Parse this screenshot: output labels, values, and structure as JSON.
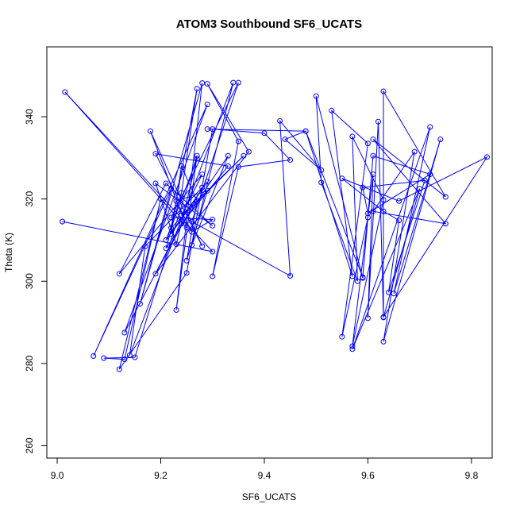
{
  "chart_data": {
    "type": "scatter",
    "title": "ATOM3 Southbound SF6_UCATS",
    "xlabel": "SF6_UCATS",
    "ylabel": "Theta (K)",
    "xlim": [
      8.98,
      9.84
    ],
    "ylim": [
      257,
      357
    ],
    "xticks": [
      9.0,
      9.2,
      9.4,
      9.6,
      9.8
    ],
    "yticks": [
      260,
      280,
      300,
      320,
      340
    ],
    "xtick_labels": [
      "9.0",
      "9.2",
      "9.4",
      "9.6",
      "9.8"
    ],
    "ytick_labels": [
      "260",
      "280",
      "300",
      "320",
      "340"
    ],
    "grid": false,
    "legend": "none",
    "marker": "open-circle",
    "line": "connected-in-order",
    "color": "#0000ff",
    "series": [
      {
        "points": [
          [
            9.01,
            314.5
          ],
          [
            9.3,
            307.2
          ],
          [
            9.015,
            346.0
          ],
          [
            9.25,
            313.0
          ],
          [
            9.18,
            336.5
          ],
          [
            9.28,
            308.5
          ],
          [
            9.19,
            331.0
          ],
          [
            9.33,
            328.0
          ],
          [
            9.24,
            314.0
          ],
          [
            9.13,
            287.5
          ],
          [
            9.29,
            343.0
          ],
          [
            9.07,
            281.8
          ],
          [
            9.22,
            322.5
          ],
          [
            9.16,
            294.5
          ],
          [
            9.28,
            348.2
          ],
          [
            9.23,
            293.0
          ],
          [
            9.27,
            330.5
          ],
          [
            9.15,
            281.5
          ],
          [
            9.09,
            281.3
          ],
          [
            9.13,
            281.0
          ],
          [
            9.2,
            320.0
          ],
          [
            9.12,
            278.6
          ],
          [
            9.25,
            302.0
          ],
          [
            9.3,
            337.0
          ],
          [
            9.4,
            336.0
          ],
          [
            9.45,
            329.5
          ],
          [
            9.35,
            327.8
          ],
          [
            9.3,
            301.2
          ],
          [
            9.35,
            334.0
          ],
          [
            9.29,
            348.0
          ],
          [
            9.37,
            331.5
          ],
          [
            9.19,
            301.8
          ],
          [
            9.28,
            322.8
          ],
          [
            9.17,
            308.5
          ],
          [
            9.14,
            282.0
          ],
          [
            9.34,
            348.3
          ],
          [
            9.26,
            308.8
          ],
          [
            9.33,
            330.5
          ],
          [
            9.21,
            308.0
          ],
          [
            9.24,
            321.5
          ],
          [
            9.27,
            346.8
          ],
          [
            9.22,
            313.0
          ],
          [
            9.36,
            330.5
          ],
          [
            9.24,
            316.0
          ],
          [
            9.28,
            326.0
          ],
          [
            9.12,
            301.8
          ],
          [
            9.21,
            323.8
          ],
          [
            9.3,
            313.5
          ],
          [
            9.19,
            323.8
          ],
          [
            9.23,
            309.0
          ],
          [
            9.27,
            329.8
          ],
          [
            9.21,
            310.0
          ],
          [
            9.29,
            324.2
          ],
          [
            9.22,
            311.5
          ],
          [
            9.24,
            328.0
          ],
          [
            9.27,
            319.5
          ],
          [
            9.25,
            305.0
          ],
          [
            9.29,
            322.0
          ],
          [
            9.23,
            319.5
          ],
          [
            9.26,
            312.0
          ],
          [
            9.3,
            315.0
          ],
          [
            9.22,
            315.5
          ],
          [
            9.35,
            348.3
          ],
          [
            9.26,
            314.5
          ],
          [
            9.45,
            301.3
          ],
          [
            9.43,
            339.0
          ],
          [
            9.51,
            327.0
          ],
          [
            9.44,
            334.5
          ],
          [
            9.48,
            336.5
          ],
          [
            9.57,
            301.2
          ],
          [
            9.53,
            341.5
          ],
          [
            9.6,
            333.5
          ],
          [
            9.55,
            286.5
          ],
          [
            9.6,
            315.5
          ],
          [
            9.59,
            300.8
          ],
          [
            9.5,
            345.0
          ],
          [
            9.51,
            324.0
          ],
          [
            9.58,
            300.0
          ],
          [
            9.57,
            335.2
          ],
          [
            9.63,
            319.8
          ],
          [
            9.57,
            284.2
          ],
          [
            9.61,
            326.0
          ],
          [
            9.6,
            291.0
          ],
          [
            9.62,
            338.8
          ],
          [
            9.63,
            291.2
          ],
          [
            9.7,
            322.5
          ],
          [
            9.57,
            283.5
          ],
          [
            9.72,
            337.5
          ],
          [
            9.65,
            297.0
          ],
          [
            9.74,
            334.5
          ],
          [
            9.63,
            285.3
          ],
          [
            9.69,
            331.5
          ],
          [
            9.61,
            317.0
          ],
          [
            9.75,
            314.0
          ],
          [
            9.61,
            334.5
          ],
          [
            9.75,
            320.5
          ],
          [
            9.63,
            346.2
          ],
          [
            9.63,
            291.3
          ],
          [
            9.83,
            330.2
          ],
          [
            9.66,
            319.5
          ],
          [
            9.55,
            325.0
          ],
          [
            9.63,
            317.0
          ],
          [
            9.66,
            314.8
          ],
          [
            9.64,
            297.3
          ],
          [
            9.71,
            324.5
          ],
          [
            9.59,
            322.8
          ],
          [
            9.6,
            316.5
          ],
          [
            9.72,
            326.0
          ],
          [
            9.61,
            330.5
          ],
          [
            9.59,
            301.0
          ],
          [
            9.48,
            336.5
          ],
          [
            9.29,
            337.0
          ]
        ]
      }
    ]
  }
}
